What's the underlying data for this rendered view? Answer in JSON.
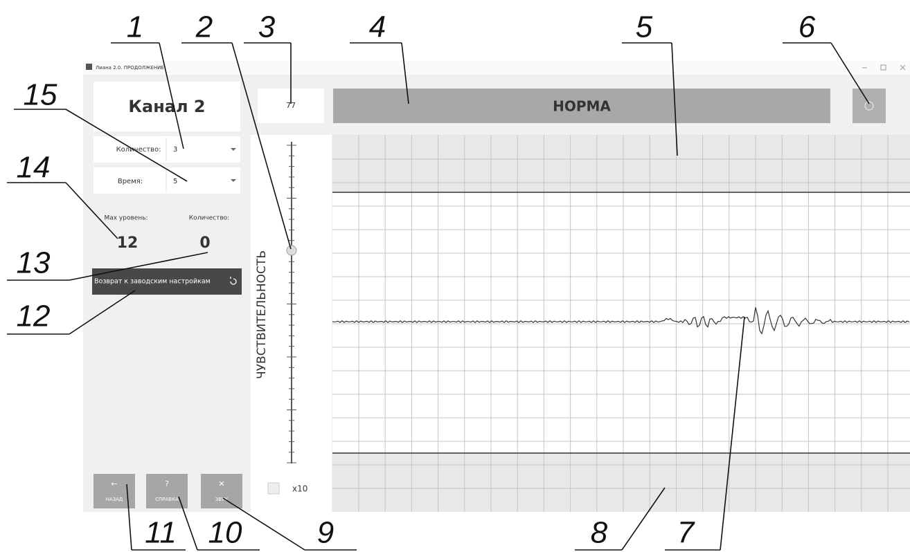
{
  "window": {
    "title": "Лиана 2.0. ПРОДОЛЖЕНИЕ"
  },
  "left_panel": {
    "channel": "Канал 2",
    "count_label": "Количество:",
    "count_value": "3",
    "time_label": "Время:",
    "time_value": "5",
    "max_level_label": "Max уровень:",
    "count2_label": "Количество:",
    "max_level_value": "12",
    "count2_value": "0",
    "reset_button": "Возврат к заводским настройкам"
  },
  "top_bar": {
    "value": "77",
    "status": "НОРМА"
  },
  "slider": {
    "label": "ЧУВСТВИТЕЛЬНОСТЬ",
    "checkbox": "x10"
  },
  "buttons": [
    "НАЗАД",
    "СПРАВКА",
    "ЗВУК"
  ],
  "callouts": [
    "1",
    "2",
    "3",
    "4",
    "5",
    "6",
    "7",
    "8",
    "9",
    "10",
    "11",
    "12",
    "13",
    "14",
    "15"
  ]
}
